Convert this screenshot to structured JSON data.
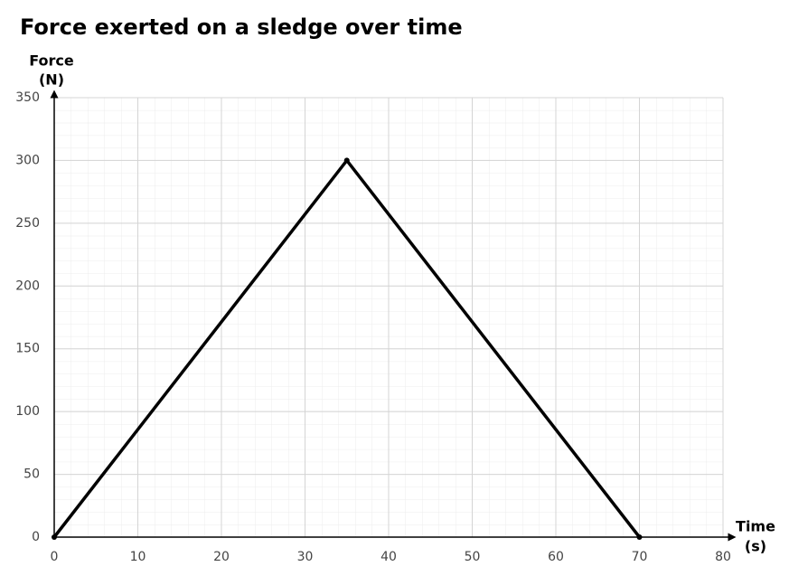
{
  "chart_data": {
    "type": "line",
    "title": "Force exerted on a sledge over time",
    "xlabel": [
      "Time",
      "(s)"
    ],
    "ylabel": [
      "Force",
      "(N)"
    ],
    "x": [
      0,
      35,
      70
    ],
    "series": [
      {
        "name": "Force",
        "color": "#000000",
        "values": [
          0,
          300,
          0
        ]
      }
    ],
    "xlim": [
      0,
      80
    ],
    "xticks": [
      0,
      10,
      20,
      30,
      40,
      50,
      60,
      70,
      80
    ],
    "ylim": [
      0,
      350
    ],
    "yticks": [
      0,
      50,
      100,
      150,
      200,
      250,
      300,
      350
    ],
    "grid": true
  }
}
